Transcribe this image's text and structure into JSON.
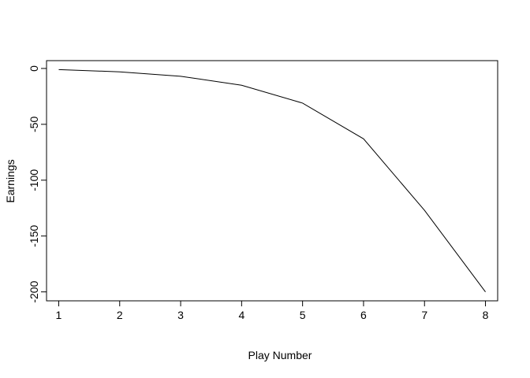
{
  "chart_data": {
    "type": "line",
    "xlabel": "Play Number",
    "ylabel": "Earnings",
    "x": [
      1,
      2,
      3,
      4,
      5,
      6,
      7,
      8
    ],
    "series": [
      {
        "values": [
          -1,
          -3,
          -7,
          -15,
          -31,
          -63,
          -127,
          -200
        ]
      }
    ],
    "xlim": [
      0.8,
      8.2
    ],
    "ylim": [
      -208,
      7
    ],
    "xticks": [
      1,
      2,
      3,
      4,
      5,
      6,
      7,
      8
    ],
    "yticks": [
      0,
      -50,
      -100,
      -150,
      -200
    ],
    "grid": false,
    "legend": "none",
    "line_color": "#000000"
  }
}
